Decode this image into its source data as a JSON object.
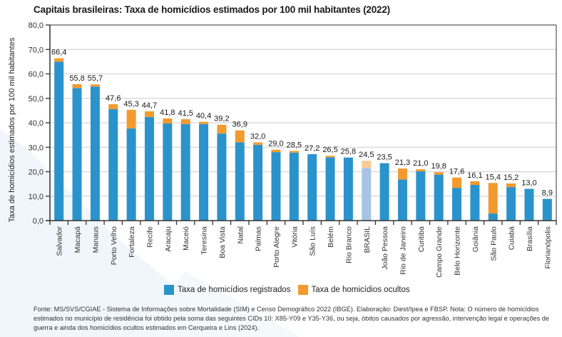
{
  "title": "Capitais brasileiras: Taxa de homicídios estimados por 100 mil habitantes (2022)",
  "colors": {
    "registered": "#2b93cc",
    "hidden": "#f39a2e",
    "registered_highlight": "#a7c4e4",
    "hidden_highlight": "#f8cb94"
  },
  "legend": [
    {
      "label": "Taxa de homicídios registrados",
      "color": "#2b93cc"
    },
    {
      "label": "Taxa de homicídios ocultos",
      "color": "#f39a2e"
    }
  ],
  "footer": "Fonte: MS/SVS/CGIAE - Sistema de Informações sobre Mortalidade (SIM) e Censo Demográfico 2022 (IBGE). Elaboração: Diest/Ipea e FBSP. Nota: O número de homicídios estimados no município de residência foi obtido pela soma das seguintes CIDs 10: X85-Y09 e Y35-Y36, ou seja, óbitos causados por agressão, intervenção legal e operações de guerra e ainda dos homicídios ocultos estimados em Cerqueira e Lins (2024).",
  "chart_data": {
    "type": "bar",
    "stacked": true,
    "title": "Capitais brasileiras: Taxa de homicídios estimados por 100 mil habitantes (2022)",
    "xlabel": "",
    "ylabel": "Taxa de homicídios estimados por 100 mil habitantes",
    "ylim": [
      0,
      80
    ],
    "yticks": [
      "0,0",
      "10,0",
      "20,0",
      "30,0",
      "40,0",
      "50,0",
      "60,0",
      "70,0",
      "80,0"
    ],
    "ytick_values": [
      0,
      10,
      20,
      30,
      40,
      50,
      60,
      70,
      80
    ],
    "grid": true,
    "legend_position": "bottom",
    "highlight_category": "BRASIL",
    "categories": [
      "Salvador",
      "Macapá",
      "Manaus",
      "Porto Velho",
      "Fortaleza",
      "Recife",
      "Aracaju",
      "Maceió",
      "Teresina",
      "Boa Vista",
      "Natal",
      "Palmas",
      "Porto Alegre",
      "Vitória",
      "São Luís",
      "Belém",
      "Rio Branco",
      "BRASIL",
      "João Pessoa",
      "Rio de Janeiro",
      "Curitiba",
      "Campo Grande",
      "Belo Horizonte",
      "Goiânia",
      "São Paulo",
      "Cuiabá",
      "Brasília",
      "Florianópolis"
    ],
    "totals": [
      66.4,
      55.8,
      55.7,
      47.6,
      45.3,
      44.7,
      41.8,
      41.5,
      40.4,
      39.2,
      36.9,
      32.0,
      29.0,
      28.5,
      27.2,
      26.5,
      25.8,
      24.5,
      23.5,
      21.3,
      21.0,
      19.8,
      17.6,
      16.1,
      15.4,
      15.2,
      13.0,
      8.9
    ],
    "total_labels": [
      "66,4",
      "55,8",
      "55,7",
      "47,6",
      "45,3",
      "44,7",
      "41,8",
      "41,5",
      "40,4",
      "39,2",
      "36,9",
      "32,0",
      "29,0",
      "28,5",
      "27,2",
      "26,5",
      "25,8",
      "24,5",
      "23,5",
      "21,3",
      "21,0",
      "19,8",
      "17,6",
      "16,1",
      "15,4",
      "15,2",
      "13,0",
      "8,9"
    ],
    "series": [
      {
        "name": "Taxa de homicídios registrados",
        "values": [
          65.0,
          54.2,
          54.8,
          45.6,
          37.7,
          42.4,
          39.7,
          39.5,
          39.5,
          35.6,
          32.0,
          31.0,
          28.0,
          27.8,
          27.2,
          25.9,
          25.8,
          21.5,
          23.5,
          16.8,
          20.2,
          18.8,
          13.4,
          14.6,
          2.9,
          13.7,
          13.0,
          8.9
        ]
      },
      {
        "name": "Taxa de homicídios ocultos",
        "values": [
          1.4,
          1.6,
          0.9,
          2.0,
          7.6,
          2.3,
          2.1,
          2.0,
          0.9,
          3.6,
          4.9,
          1.0,
          1.0,
          0.7,
          0.0,
          0.6,
          0.0,
          3.0,
          0.0,
          4.5,
          0.8,
          1.0,
          4.2,
          1.5,
          12.5,
          1.5,
          0.0,
          0.0
        ]
      }
    ]
  }
}
